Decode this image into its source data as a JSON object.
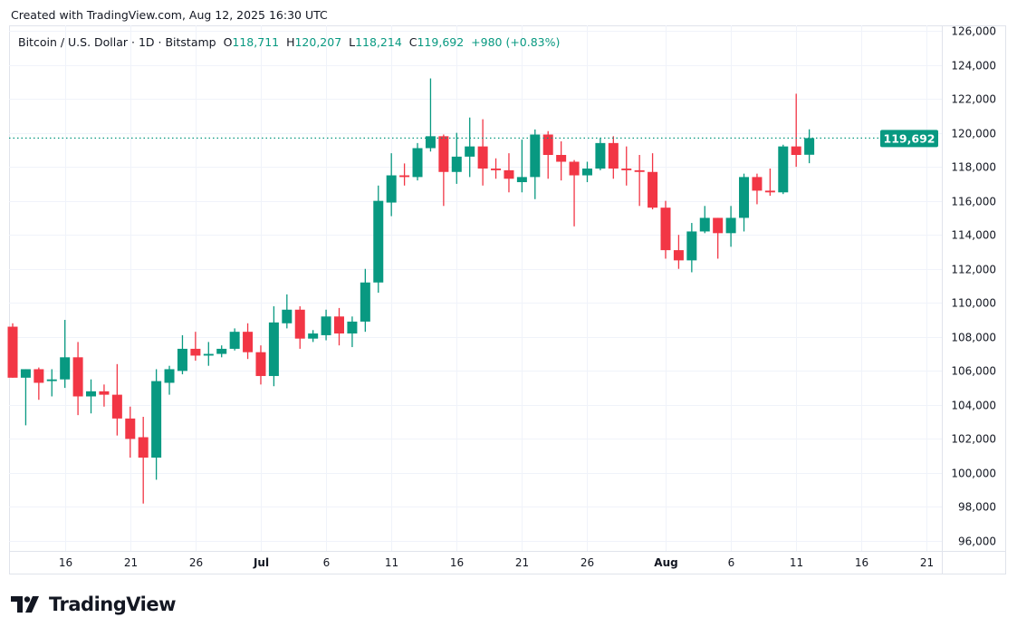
{
  "header": {
    "created": "Created with TradingView.com, Aug 12, 2025 16:30 UTC",
    "symbol": "Bitcoin / U.S. Dollar · 1D · Bitstamp",
    "o_label": "O",
    "o": "118,711",
    "h_label": "H",
    "h": "120,207",
    "l_label": "L",
    "l": "118,214",
    "c_label": "C",
    "c": "119,692",
    "change": "+980 (+0.83%)"
  },
  "logo": {
    "text": "TradingView"
  },
  "colors": {
    "up": "#089981",
    "down": "#f23645",
    "grid": "#f0f3fa",
    "text": "#131722"
  },
  "chart_data": {
    "type": "candlestick",
    "title": "Bitcoin / U.S. Dollar · 1D · Bitstamp",
    "ylim": [
      95000,
      126500
    ],
    "y_ticks": [
      96000,
      98000,
      100000,
      102000,
      104000,
      106000,
      108000,
      110000,
      112000,
      114000,
      116000,
      118000,
      120000,
      122000,
      124000,
      126000
    ],
    "y_tick_labels": [
      "96,000",
      "98,000",
      "100,000",
      "102,000",
      "104,000",
      "106,000",
      "108,000",
      "110,000",
      "112,000",
      "114,000",
      "116,000",
      "118,000",
      "120,000",
      "122,000",
      "124,000",
      "126,000"
    ],
    "x_ticks": [
      {
        "date": "2025-06-16",
        "label": "16"
      },
      {
        "date": "2025-06-21",
        "label": "21"
      },
      {
        "date": "2025-06-26",
        "label": "26"
      },
      {
        "date": "2025-07-01",
        "label": "Jul"
      },
      {
        "date": "2025-07-06",
        "label": "6"
      },
      {
        "date": "2025-07-11",
        "label": "11"
      },
      {
        "date": "2025-07-16",
        "label": "16"
      },
      {
        "date": "2025-07-21",
        "label": "21"
      },
      {
        "date": "2025-07-26",
        "label": "26"
      },
      {
        "date": "2025-08-01",
        "label": "Aug"
      },
      {
        "date": "2025-08-06",
        "label": "6"
      },
      {
        "date": "2025-08-11",
        "label": "11"
      },
      {
        "date": "2025-08-16",
        "label": "16"
      },
      {
        "date": "2025-08-21",
        "label": "21"
      }
    ],
    "last_price": 119692,
    "last_price_label": "119,692",
    "grid": true,
    "candles_columns": [
      "date",
      "open",
      "high",
      "low",
      "close"
    ],
    "candles": [
      [
        "2025-06-12",
        108600,
        108800,
        105600,
        105600
      ],
      [
        "2025-06-13",
        105600,
        106100,
        102800,
        106100
      ],
      [
        "2025-06-14",
        106100,
        106200,
        104300,
        105300
      ],
      [
        "2025-06-15",
        105400,
        106100,
        104500,
        105500
      ],
      [
        "2025-06-16",
        105500,
        109000,
        105000,
        106800
      ],
      [
        "2025-06-17",
        106800,
        107700,
        103400,
        104500
      ],
      [
        "2025-06-18",
        104500,
        105500,
        103500,
        104800
      ],
      [
        "2025-06-19",
        104800,
        105200,
        103900,
        104600
      ],
      [
        "2025-06-20",
        104600,
        106400,
        102200,
        103200
      ],
      [
        "2025-06-21",
        103200,
        103900,
        100900,
        102000
      ],
      [
        "2025-06-22",
        102100,
        103300,
        98200,
        100900
      ],
      [
        "2025-06-23",
        100900,
        106100,
        99600,
        105400
      ],
      [
        "2025-06-24",
        105300,
        106300,
        104600,
        106100
      ],
      [
        "2025-06-25",
        106000,
        108100,
        105800,
        107300
      ],
      [
        "2025-06-26",
        107300,
        108300,
        106600,
        106900
      ],
      [
        "2025-06-27",
        106900,
        107700,
        106300,
        107000
      ],
      [
        "2025-06-28",
        107000,
        107500,
        106800,
        107300
      ],
      [
        "2025-06-29",
        107300,
        108500,
        107200,
        108300
      ],
      [
        "2025-06-30",
        108300,
        108800,
        106700,
        107100
      ],
      [
        "2025-07-01",
        107100,
        107500,
        105200,
        105700
      ],
      [
        "2025-07-02",
        105700,
        109800,
        105100,
        108850
      ],
      [
        "2025-07-03",
        108800,
        110500,
        108500,
        109600
      ],
      [
        "2025-07-04",
        109600,
        109800,
        107300,
        107900
      ],
      [
        "2025-07-05",
        107900,
        108400,
        107700,
        108200
      ],
      [
        "2025-07-06",
        108100,
        109600,
        107800,
        109200
      ],
      [
        "2025-07-07",
        109200,
        109700,
        107500,
        108200
      ],
      [
        "2025-07-08",
        108200,
        109200,
        107400,
        108900
      ],
      [
        "2025-07-09",
        108900,
        112000,
        108300,
        111200
      ],
      [
        "2025-07-10",
        111200,
        116900,
        110600,
        116000
      ],
      [
        "2025-07-11",
        115900,
        118800,
        115100,
        117500
      ],
      [
        "2025-07-12",
        117500,
        118200,
        116900,
        117400
      ],
      [
        "2025-07-13",
        117400,
        119400,
        117200,
        119100
      ],
      [
        "2025-07-14",
        119100,
        123200,
        118900,
        119800
      ],
      [
        "2025-07-15",
        119800,
        119900,
        115700,
        117700
      ],
      [
        "2025-07-16",
        117700,
        120000,
        117000,
        118600
      ],
      [
        "2025-07-17",
        118600,
        120900,
        117400,
        119200
      ],
      [
        "2025-07-18",
        119200,
        120800,
        116900,
        117900
      ],
      [
        "2025-07-19",
        117900,
        118500,
        117300,
        117800
      ],
      [
        "2025-07-20",
        117800,
        118800,
        116500,
        117300
      ],
      [
        "2025-07-21",
        117100,
        119600,
        116500,
        117400
      ],
      [
        "2025-07-22",
        117400,
        120200,
        116100,
        119900
      ],
      [
        "2025-07-23",
        119900,
        120100,
        117300,
        118700
      ],
      [
        "2025-07-24",
        118700,
        119500,
        117200,
        118300
      ],
      [
        "2025-07-25",
        118300,
        118400,
        114500,
        117500
      ],
      [
        "2025-07-26",
        117500,
        118300,
        117100,
        117900
      ],
      [
        "2025-07-27",
        117900,
        119700,
        117800,
        119400
      ],
      [
        "2025-07-28",
        119400,
        119800,
        117300,
        117900
      ],
      [
        "2025-07-29",
        117900,
        119200,
        116900,
        117800
      ],
      [
        "2025-07-30",
        117800,
        118700,
        115700,
        117700
      ],
      [
        "2025-07-31",
        117700,
        118800,
        115500,
        115600
      ],
      [
        "2025-08-01",
        115600,
        116000,
        112600,
        113100
      ],
      [
        "2025-08-02",
        113100,
        114000,
        112000,
        112500
      ],
      [
        "2025-08-03",
        112500,
        114700,
        111800,
        114200
      ],
      [
        "2025-08-04",
        114200,
        115700,
        114100,
        115000
      ],
      [
        "2025-08-05",
        115000,
        115000,
        112600,
        114100
      ],
      [
        "2025-08-06",
        114100,
        115700,
        113300,
        115000
      ],
      [
        "2025-08-07",
        115000,
        117600,
        114200,
        117400
      ],
      [
        "2025-08-08",
        117400,
        117600,
        115800,
        116600
      ],
      [
        "2025-08-09",
        116600,
        117900,
        116300,
        116500
      ],
      [
        "2025-08-10",
        116500,
        119300,
        116400,
        119200
      ],
      [
        "2025-08-11",
        119200,
        122300,
        118000,
        118700
      ],
      [
        "2025-08-12",
        118711,
        120207,
        118214,
        119692
      ]
    ]
  }
}
